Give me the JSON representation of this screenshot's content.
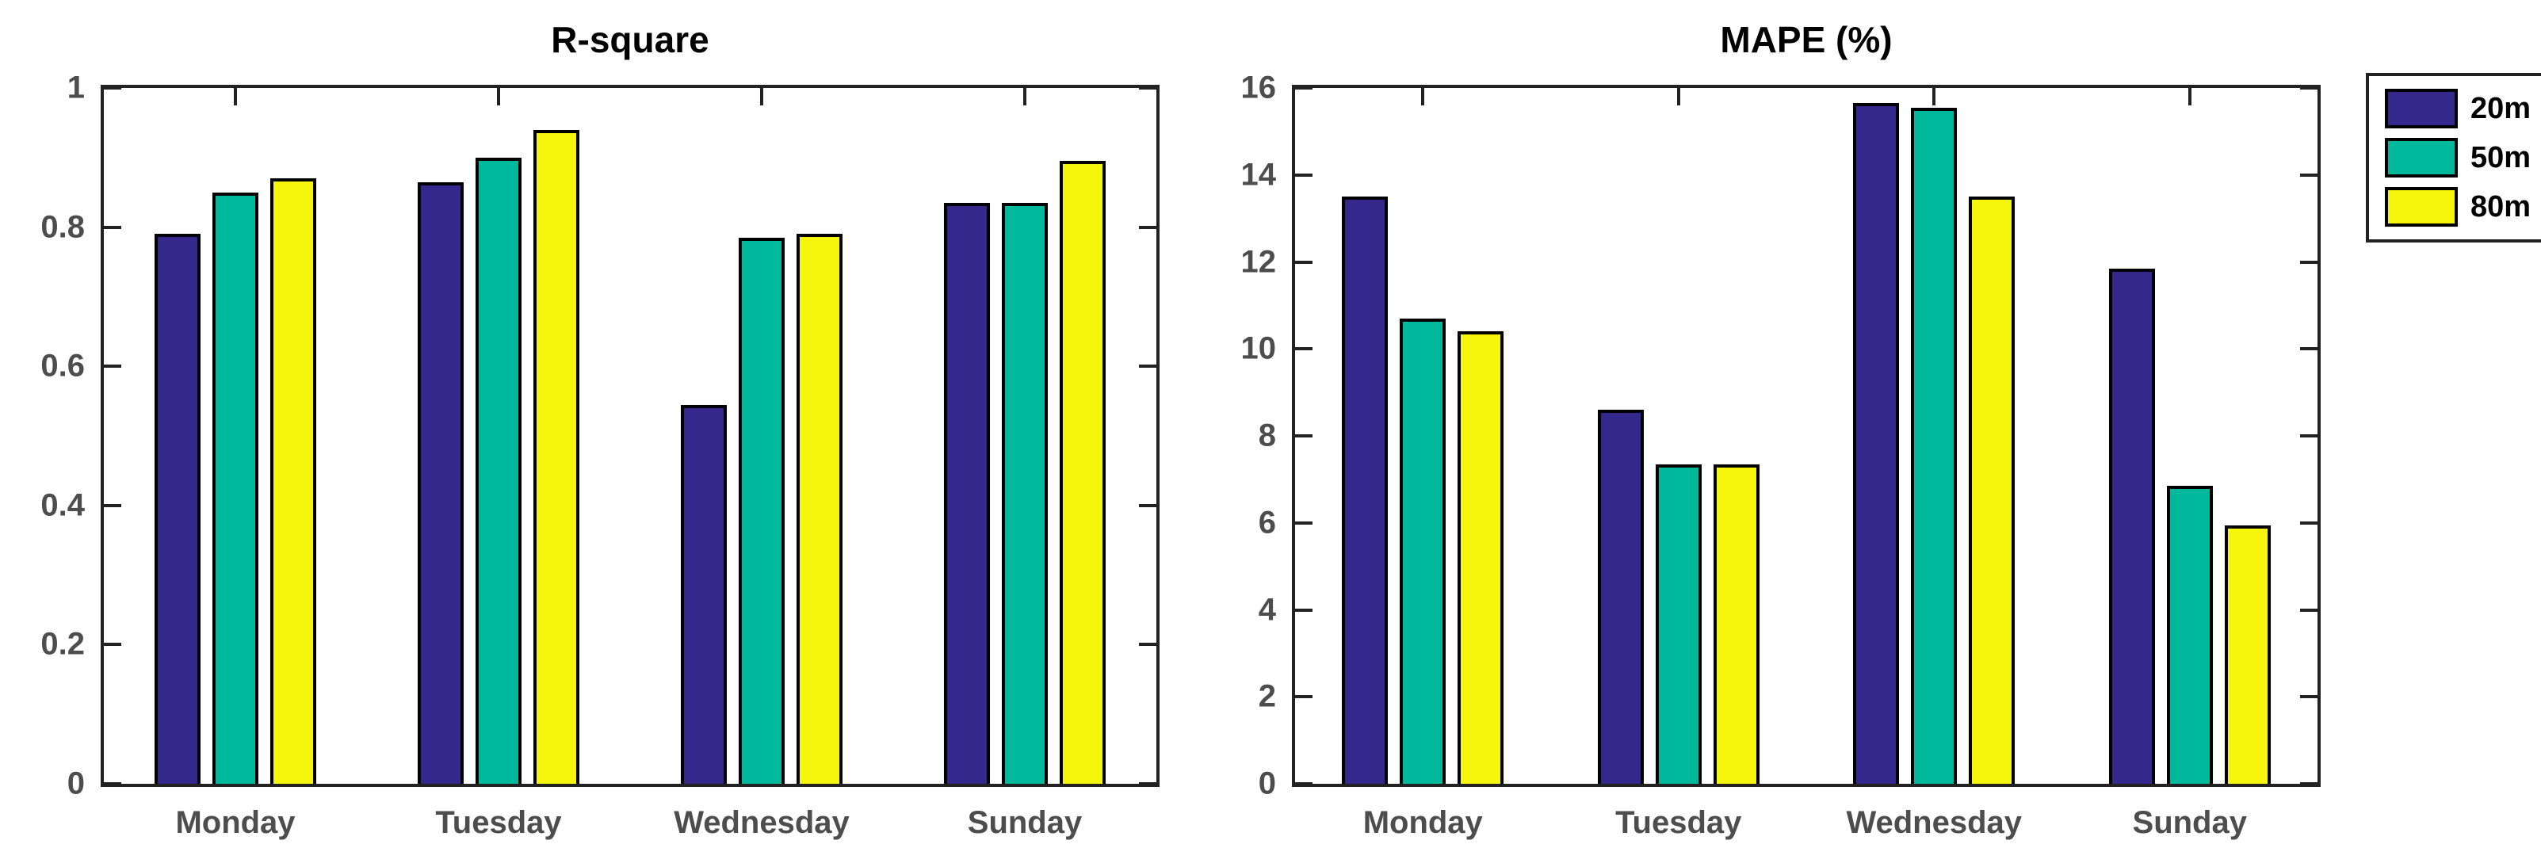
{
  "figure": {
    "background": "#ffffff",
    "axis_color": "#222222",
    "tick_label_color": "#4d4d4d"
  },
  "legend": {
    "entries": [
      {
        "label": "20m",
        "color": "#34288C"
      },
      {
        "label": "50m",
        "color": "#00B89B"
      },
      {
        "label": "80m",
        "color": "#F6F60D"
      }
    ],
    "position": "top-right-outside-second-plot"
  },
  "chart_data": [
    {
      "type": "bar",
      "title": "R-square",
      "xlabel": "",
      "ylabel": "",
      "categories": [
        "Monday",
        "Tuesday",
        "Wednesday",
        "Sunday"
      ],
      "series": [
        {
          "name": "20m",
          "color": "#34288C",
          "values": [
            0.79,
            0.865,
            0.545,
            0.835
          ]
        },
        {
          "name": "50m",
          "color": "#00B89B",
          "values": [
            0.85,
            0.9,
            0.785,
            0.835
          ]
        },
        {
          "name": "80m",
          "color": "#F6F60D",
          "values": [
            0.87,
            0.94,
            0.79,
            0.895
          ]
        }
      ],
      "ylim": [
        0,
        1
      ],
      "ytick_step": 0.2,
      "yticks": [
        "0",
        "0.2",
        "0.4",
        "0.6",
        "0.8",
        "1"
      ],
      "grid": false,
      "legend_position": "none"
    },
    {
      "type": "bar",
      "title": "MAPE (%)",
      "xlabel": "",
      "ylabel": "",
      "categories": [
        "Monday",
        "Tuesday",
        "Wednesday",
        "Sunday"
      ],
      "series": [
        {
          "name": "20m",
          "color": "#34288C",
          "values": [
            13.5,
            8.6,
            15.65,
            11.85
          ]
        },
        {
          "name": "50m",
          "color": "#00B89B",
          "values": [
            10.7,
            7.35,
            15.55,
            6.85
          ]
        },
        {
          "name": "80m",
          "color": "#F6F60D",
          "values": [
            10.4,
            7.35,
            13.5,
            5.95
          ]
        }
      ],
      "ylim": [
        0,
        16
      ],
      "ytick_step": 2,
      "yticks": [
        "0",
        "2",
        "4",
        "6",
        "8",
        "10",
        "12",
        "14",
        "16"
      ],
      "grid": false,
      "legend_position": "outside-right"
    }
  ]
}
